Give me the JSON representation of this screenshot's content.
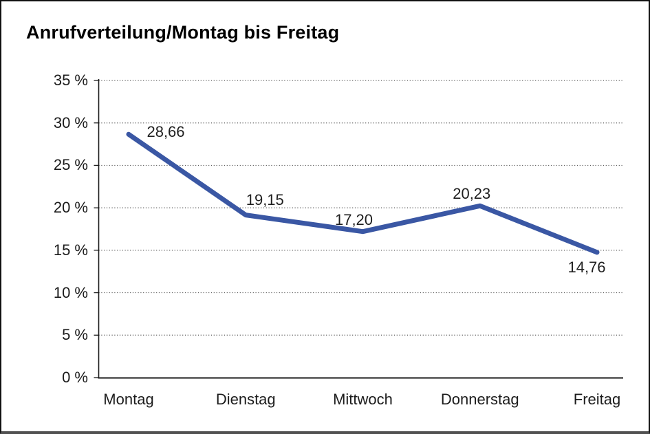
{
  "window": {
    "background": "#ffffff",
    "border_color": "#111111"
  },
  "chart_data": {
    "type": "line",
    "title": "Anrufverteilung/Montag bis Freitag",
    "categories": [
      "Montag",
      "Dienstag",
      "Mittwoch",
      "Donnerstag",
      "Freitag"
    ],
    "values": [
      28.66,
      19.15,
      17.2,
      20.23,
      14.76
    ],
    "point_labels": [
      "28,66",
      "19,15",
      "17,20",
      "20,23",
      "14,76"
    ],
    "xlabel": "",
    "ylabel": "",
    "ylim": [
      0,
      35
    ],
    "y_tick_values": [
      35,
      30,
      25,
      20,
      15,
      10,
      5,
      0
    ],
    "y_tick_labels": [
      "35 %",
      "30 %",
      "25 %",
      "20 %",
      "15 %",
      "10 %",
      "5 %",
      "0 %"
    ],
    "grid": "horizontal-dotted",
    "legend": "none",
    "line_color": "#3A57A4",
    "axis_color": "#1a1a1a",
    "gridline_color": "#5a5a5a"
  }
}
